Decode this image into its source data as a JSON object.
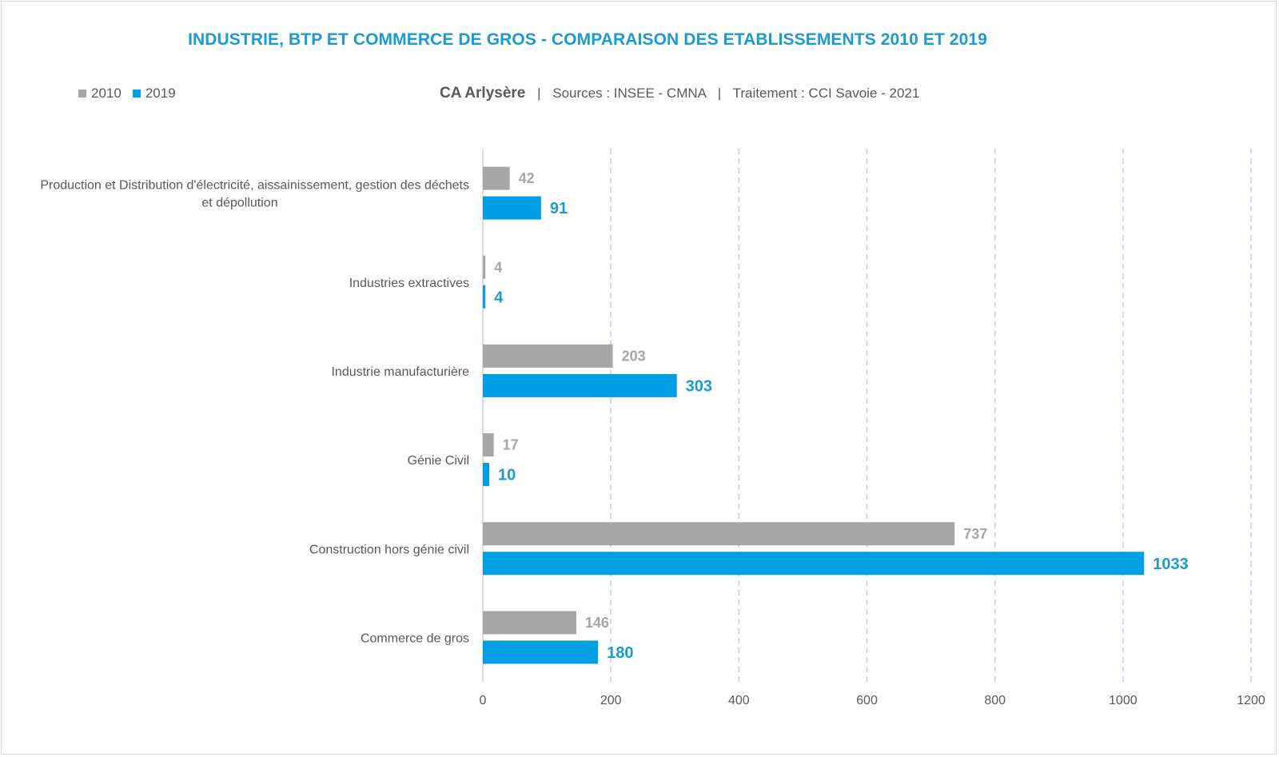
{
  "chart_data": {
    "type": "bar",
    "orientation": "horizontal",
    "title": "INDUSTRIE, BTP ET COMMERCE DE GROS - COMPARAISON DES ETABLISSEMENTS 2010 ET 2019",
    "subtitle": {
      "place": "CA Arlysère",
      "sources": "Sources : INSEE - CMNA",
      "treatment": "Traitement : CCI Savoie - 2021",
      "separator": "|"
    },
    "categories": [
      [
        "Production et Distribution d'électricité, aissainissement, gestion des déchets",
        "et dépollution"
      ],
      [
        "Industries extractives"
      ],
      [
        "Industrie manufacturière"
      ],
      [
        "Génie Civil"
      ],
      [
        "Construction hors génie civil"
      ],
      [
        "Commerce de gros"
      ]
    ],
    "series": [
      {
        "name": "2010",
        "color": "#a6a6a6",
        "values": [
          42,
          4,
          203,
          17,
          737,
          146
        ]
      },
      {
        "name": "2019",
        "color": "#009fe3",
        "values": [
          91,
          4,
          303,
          10,
          1033,
          180
        ]
      }
    ],
    "xlim": [
      0,
      1200
    ],
    "xticks": [
      0,
      200,
      400,
      600,
      800,
      1000,
      1200
    ],
    "grid": "vertical-dashed",
    "legend_position": "top-left"
  }
}
